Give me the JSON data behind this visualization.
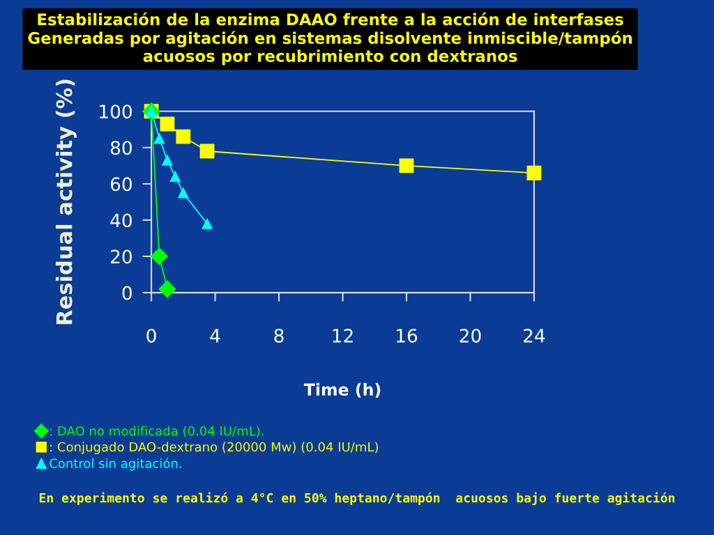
{
  "chart_data": {
    "type": "line",
    "title": "Estabilización de la enzima DAAO frente a la acción de interfases Generadas por agitación en sistemas disolvente inmiscible/tampón acuosos por recubrimiento con dextranos",
    "xlabel": "Time (h)",
    "ylabel": "Residual activity (%)",
    "xlim": [
      0,
      24
    ],
    "xticks": [
      0,
      4,
      8,
      12,
      16,
      20,
      24
    ],
    "ylim": [
      0,
      100
    ],
    "yticks": [
      0,
      20,
      40,
      60,
      80,
      100
    ],
    "grid": false,
    "legend": "bottom left",
    "series": [
      {
        "name": ": DAO no modificada (0.04 IU/mL).",
        "color": "#00ff00",
        "marker": "diamond",
        "x": [
          0,
          0.5,
          1
        ],
        "values": [
          100,
          20,
          2
        ]
      },
      {
        "name": ": Conjugado DAO-dextrano (20000 Mw) (0.04 IU/mL)",
        "color": "#ffff00",
        "marker": "square",
        "x": [
          0,
          1,
          2,
          3.5,
          16,
          24
        ],
        "values": [
          100,
          93,
          86,
          78,
          70,
          66
        ]
      },
      {
        "name": "Control sin agitación.",
        "color": "#00ffff",
        "marker": "triangle",
        "x": [
          0,
          0.5,
          1,
          1.5,
          2,
          3.5
        ],
        "values": [
          100,
          85,
          73,
          64,
          55,
          38
        ]
      }
    ],
    "annotations": [
      "En experimento se realizó a 4°C en 50% heptano/tampón  acuosos bajo fuerte agitación"
    ]
  }
}
